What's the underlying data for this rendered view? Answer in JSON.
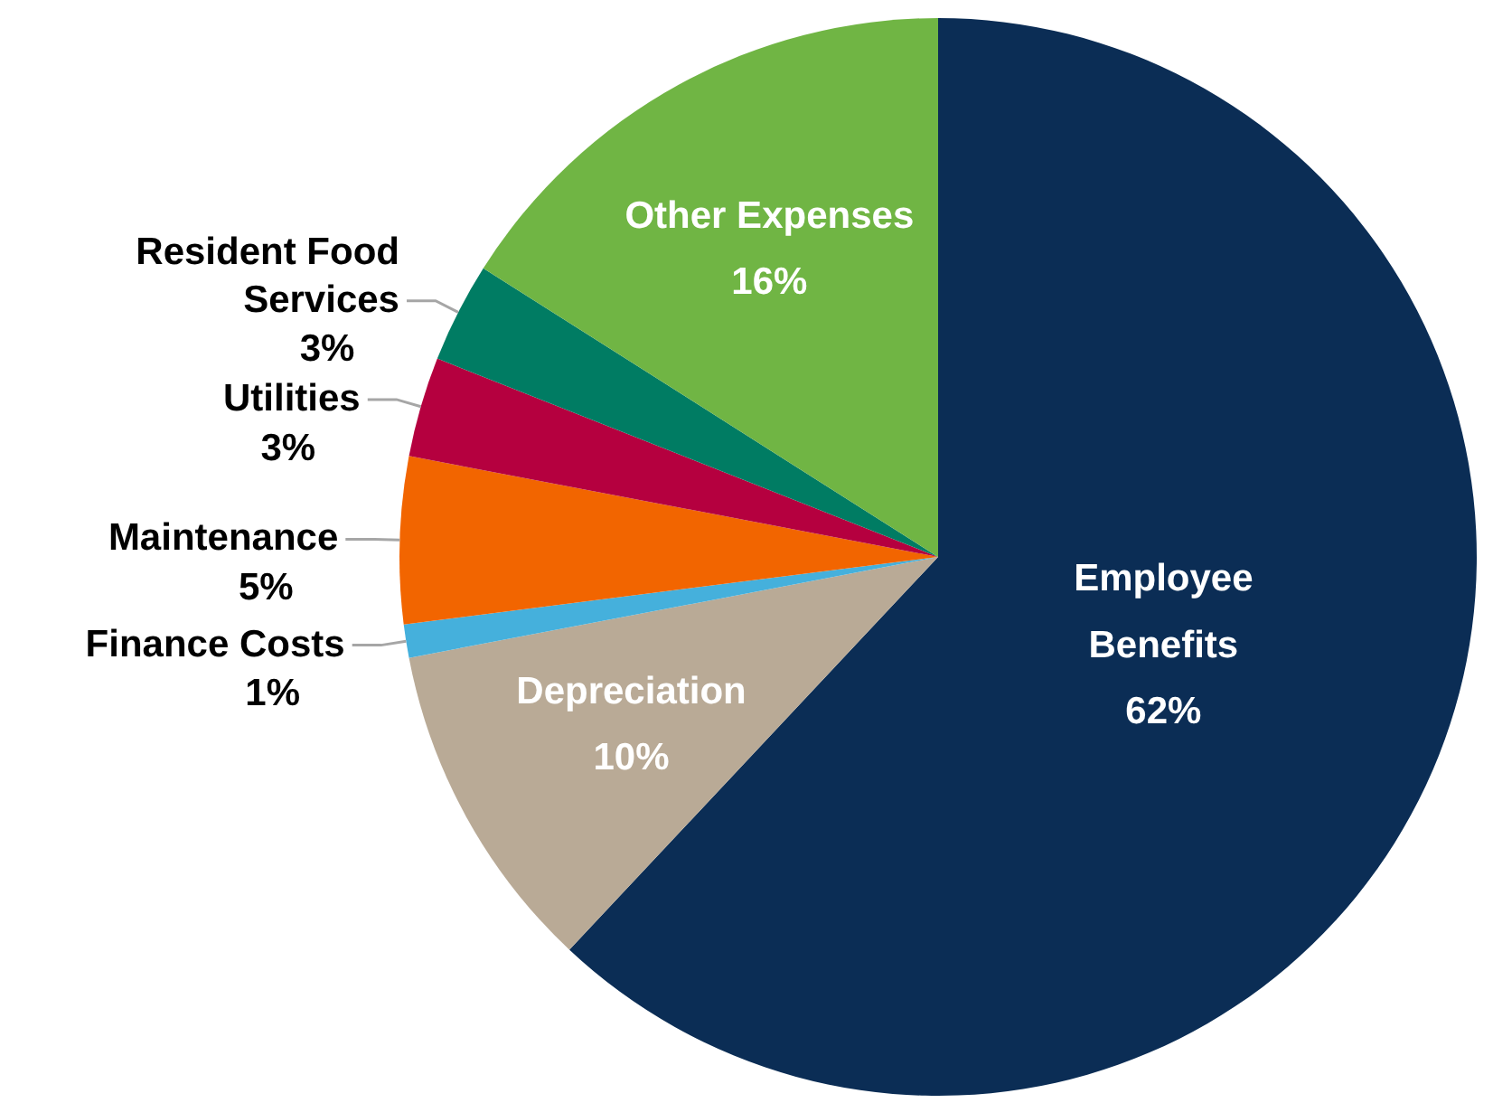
{
  "chart_data": {
    "type": "pie",
    "categories": [
      "Employee Benefits",
      "Depreciation",
      "Finance Costs",
      "Maintenance",
      "Utilities",
      "Resident Food Services",
      "Other Expenses"
    ],
    "values": [
      62,
      10,
      1,
      5,
      3,
      3,
      16
    ],
    "value_labels": [
      "62%",
      "10%",
      "1%",
      "5%",
      "3%",
      "3%",
      "16%"
    ],
    "colors": [
      "#0b2d55",
      "#b9aa96",
      "#45b0dc",
      "#f26500",
      "#b5003f",
      "#007c63",
      "#70b544"
    ]
  }
}
